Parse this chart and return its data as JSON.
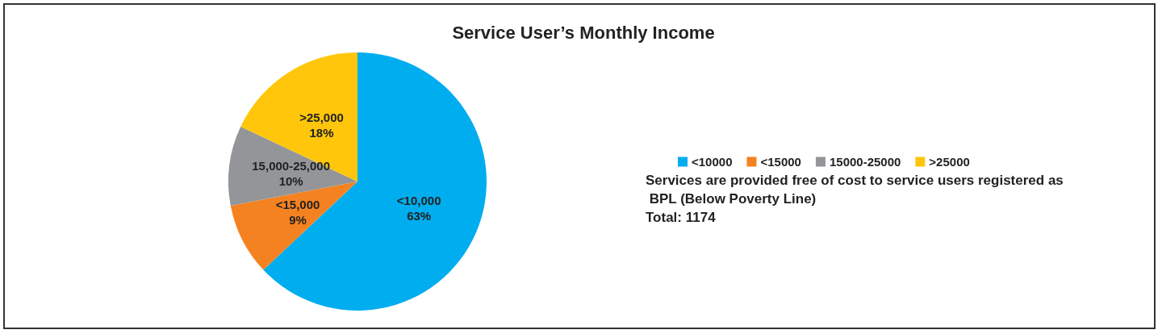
{
  "chart_data": {
    "type": "pie",
    "title": "Service User’s Monthly Income",
    "categories": [
      "<10000",
      "<15000",
      "15000-25000",
      ">25000"
    ],
    "values": [
      63,
      9,
      10,
      18
    ],
    "colors": [
      "#00adef",
      "#f58220",
      "#939598",
      "#ffc60b"
    ],
    "value_labels": [
      "<10,000\n63%",
      "<15,000\n9%",
      "15,000-25,000\n10%",
      ">25,000\n18%"
    ],
    "legend": "right",
    "annotations": [
      "Services are provided free of cost to service users registered as BPL (Below Poverty Line)",
      "Total: 1174"
    ]
  }
}
